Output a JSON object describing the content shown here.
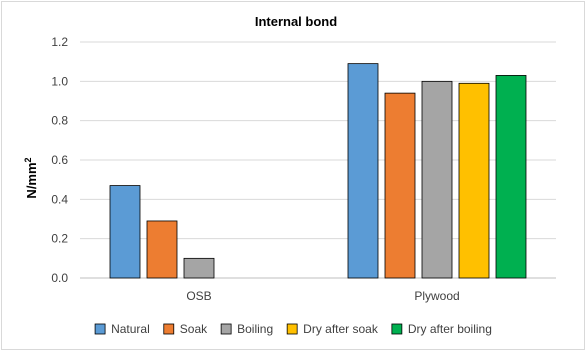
{
  "chart_data": {
    "type": "bar",
    "title": "Internal bond",
    "xlabel": "",
    "ylabel": "N/mm",
    "ylabel_superscript": "2",
    "ylim": [
      0,
      1.2
    ],
    "yticks": [
      "0.0",
      "0.2",
      "0.4",
      "0.6",
      "0.8",
      "1.0",
      "1.2"
    ],
    "grid": true,
    "legend_position": "bottom",
    "categories": [
      "OSB",
      "Plywood"
    ],
    "series": [
      {
        "name": "Natural",
        "color": "#5b9bd5",
        "values": [
          0.47,
          1.09
        ]
      },
      {
        "name": "Soak",
        "color": "#ed7d31",
        "values": [
          0.29,
          0.94
        ]
      },
      {
        "name": "Boiling",
        "color": "#a5a5a5",
        "values": [
          0.1,
          1.0
        ]
      },
      {
        "name": "Dry after soak",
        "color": "#ffc000",
        "values": [
          null,
          0.99
        ]
      },
      {
        "name": "Dry after boiling",
        "color": "#00b050",
        "values": [
          null,
          1.03
        ]
      }
    ]
  }
}
